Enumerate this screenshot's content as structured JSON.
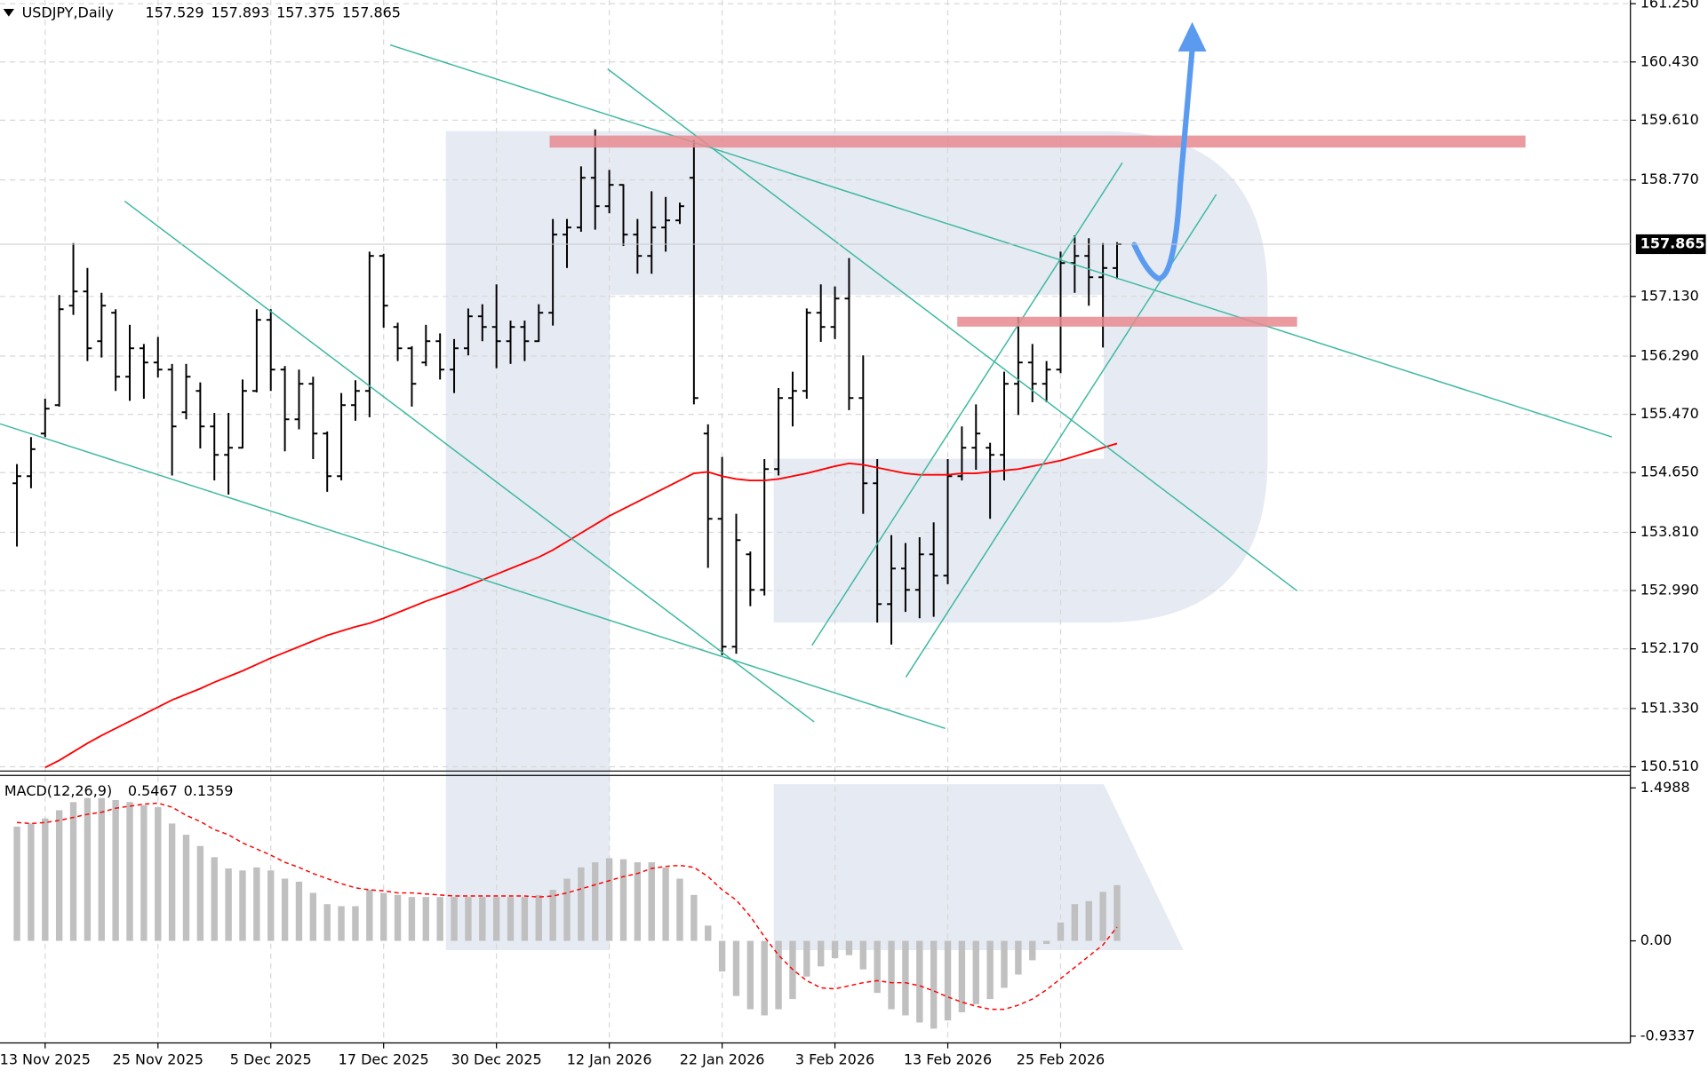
{
  "chart_data": [
    {
      "type": "ohlc",
      "title": "USDJPY,Daily",
      "color": "#000000",
      "bars": [
        [
          154.5,
          154.77,
          153.61,
          154.6
        ],
        [
          154.6,
          155.15,
          154.43,
          154.98
        ],
        [
          155.2,
          155.69,
          155.15,
          155.55
        ],
        [
          155.6,
          157.15,
          155.58,
          156.95
        ],
        [
          157.0,
          157.88,
          156.87,
          157.2
        ],
        [
          157.2,
          157.53,
          156.22,
          156.4
        ],
        [
          156.5,
          157.18,
          156.27,
          157.0
        ],
        [
          156.9,
          156.95,
          155.8,
          156.0
        ],
        [
          156.0,
          156.73,
          155.66,
          156.4
        ],
        [
          156.4,
          156.46,
          155.69,
          156.2
        ],
        [
          156.2,
          156.56,
          155.99,
          156.1
        ],
        [
          156.1,
          156.18,
          154.61,
          155.3
        ],
        [
          155.5,
          156.18,
          155.4,
          156.0
        ],
        [
          155.8,
          155.92,
          154.99,
          155.3
        ],
        [
          155.3,
          155.49,
          154.54,
          154.9
        ],
        [
          154.9,
          155.49,
          154.34,
          155.0
        ],
        [
          155.0,
          155.96,
          154.99,
          155.8
        ],
        [
          155.8,
          156.95,
          155.78,
          156.8
        ],
        [
          156.8,
          156.95,
          155.8,
          156.1
        ],
        [
          156.1,
          156.15,
          154.95,
          155.4
        ],
        [
          155.4,
          156.1,
          155.26,
          155.9
        ],
        [
          155.9,
          156.0,
          154.84,
          155.2
        ],
        [
          155.2,
          155.23,
          154.38,
          154.6
        ],
        [
          154.6,
          155.77,
          154.54,
          155.6
        ],
        [
          155.6,
          155.95,
          155.38,
          155.8
        ],
        [
          155.8,
          157.76,
          155.43,
          157.7
        ],
        [
          157.7,
          157.73,
          156.69,
          157.0
        ],
        [
          156.7,
          156.76,
          156.22,
          156.4
        ],
        [
          156.4,
          156.43,
          155.58,
          155.9
        ],
        [
          156.2,
          156.73,
          156.15,
          156.5
        ],
        [
          156.5,
          156.61,
          155.96,
          156.1
        ],
        [
          156.1,
          156.53,
          155.77,
          156.4
        ],
        [
          156.4,
          156.96,
          156.3,
          156.85
        ],
        [
          156.85,
          157.02,
          156.5,
          156.7
        ],
        [
          156.7,
          157.3,
          156.12,
          156.5
        ],
        [
          156.5,
          156.79,
          156.18,
          156.7
        ],
        [
          156.7,
          156.79,
          156.22,
          156.5
        ],
        [
          156.5,
          157.02,
          156.49,
          156.9
        ],
        [
          156.9,
          158.22,
          156.72,
          158.0
        ],
        [
          158.0,
          158.22,
          157.53,
          158.1
        ],
        [
          158.1,
          158.96,
          158.04,
          158.8
        ],
        [
          158.8,
          159.48,
          158.07,
          158.4
        ],
        [
          158.4,
          158.91,
          158.3,
          158.7
        ],
        [
          158.7,
          158.71,
          157.84,
          158.0
        ],
        [
          158.0,
          158.22,
          157.45,
          157.7
        ],
        [
          157.7,
          158.61,
          157.45,
          158.1
        ],
        [
          158.1,
          158.53,
          157.76,
          158.2
        ],
        [
          158.2,
          158.45,
          158.15,
          158.4
        ],
        [
          158.8,
          159.33,
          155.61,
          155.7
        ],
        [
          155.2,
          155.33,
          153.31,
          154.0
        ],
        [
          154.0,
          154.87,
          152.08,
          152.2
        ],
        [
          152.2,
          154.07,
          152.1,
          153.7
        ],
        [
          153.5,
          153.54,
          152.77,
          153.0
        ],
        [
          153.0,
          154.84,
          152.92,
          154.7
        ],
        [
          154.7,
          155.84,
          154.61,
          155.7
        ],
        [
          155.7,
          156.07,
          155.3,
          155.8
        ],
        [
          155.8,
          156.96,
          155.69,
          156.9
        ],
        [
          156.9,
          157.3,
          156.49,
          156.7
        ],
        [
          156.7,
          157.27,
          156.53,
          157.1
        ],
        [
          157.1,
          157.67,
          155.53,
          155.7
        ],
        [
          155.7,
          156.3,
          154.07,
          154.5
        ],
        [
          154.5,
          154.84,
          152.54,
          152.8
        ],
        [
          152.8,
          153.77,
          152.23,
          153.3
        ],
        [
          153.3,
          153.66,
          152.69,
          153.0
        ],
        [
          153.0,
          153.74,
          152.6,
          153.5
        ],
        [
          153.5,
          153.95,
          152.62,
          153.2
        ],
        [
          153.2,
          154.84,
          153.08,
          154.6
        ],
        [
          154.6,
          155.3,
          154.54,
          155.0
        ],
        [
          155.0,
          155.61,
          154.69,
          155.2
        ],
        [
          155.0,
          155.07,
          154.0,
          154.9
        ],
        [
          154.9,
          156.07,
          154.54,
          155.9
        ],
        [
          155.9,
          156.84,
          155.46,
          156.2
        ],
        [
          156.2,
          156.46,
          155.64,
          155.9
        ],
        [
          155.9,
          156.22,
          155.64,
          156.1
        ],
        [
          156.1,
          157.76,
          156.05,
          157.6
        ],
        [
          157.6,
          157.99,
          157.18,
          157.7
        ],
        [
          157.7,
          157.95,
          157.0,
          157.4
        ],
        [
          157.4,
          157.88,
          156.41,
          157.53
        ],
        [
          157.529,
          157.893,
          157.375,
          157.865
        ]
      ],
      "ma": [
        null,
        null,
        150.5,
        150.6,
        150.72,
        150.84,
        150.95,
        151.05,
        151.15,
        151.25,
        151.35,
        151.45,
        151.53,
        151.61,
        151.7,
        151.78,
        151.86,
        151.95,
        152.04,
        152.12,
        152.2,
        152.28,
        152.36,
        152.42,
        152.48,
        152.53,
        152.6,
        152.68,
        152.76,
        152.84,
        152.91,
        152.98,
        153.06,
        153.14,
        153.22,
        153.3,
        153.38,
        153.46,
        153.56,
        153.68,
        153.8,
        153.92,
        154.04,
        154.14,
        154.24,
        154.34,
        154.44,
        154.54,
        154.64,
        154.66,
        154.6,
        154.56,
        154.54,
        154.54,
        154.56,
        154.6,
        154.64,
        154.69,
        154.74,
        154.78,
        154.76,
        154.72,
        154.68,
        154.64,
        154.62,
        154.62,
        154.62,
        154.64,
        154.64,
        154.66,
        154.68,
        154.7,
        154.74,
        154.78,
        154.82,
        154.88,
        154.94,
        155.0,
        155.06
      ],
      "ma_color": "#ff0000",
      "xlim": [
        -1.2,
        114.4
      ],
      "ylim": [
        150.45,
        161.3
      ],
      "yticks": [
        {
          "value": 150.51,
          "label": "150.510"
        },
        {
          "value": 151.33,
          "label": "151.330"
        },
        {
          "value": 152.17,
          "label": "152.170"
        },
        {
          "value": 152.99,
          "label": "152.990"
        },
        {
          "value": 153.81,
          "label": "153.810"
        },
        {
          "value": 154.65,
          "label": "154.650"
        },
        {
          "value": 155.47,
          "label": "155.470"
        },
        {
          "value": 156.29,
          "label": "156.290"
        },
        {
          "value": 157.13,
          "label": "157.130"
        },
        {
          "value": 158.77,
          "label": "158.770"
        },
        {
          "value": 159.61,
          "label": "159.610"
        },
        {
          "value": 160.43,
          "label": "160.430"
        },
        {
          "value": 161.25,
          "label": "161.250"
        }
      ],
      "xticks": [
        {
          "value": 2,
          "label": "13 Nov 2025"
        },
        {
          "value": 10,
          "label": "25 Nov 2025"
        },
        {
          "value": 18,
          "label": "5 Dec 2025"
        },
        {
          "value": 26,
          "label": "17 Dec 2025"
        },
        {
          "value": 34,
          "label": "30 Dec 2025"
        },
        {
          "value": 42,
          "label": "12 Jan 2026"
        },
        {
          "value": 50,
          "label": "22 Jan 2026"
        },
        {
          "value": 58,
          "label": "3 Feb 2026"
        },
        {
          "value": 66,
          "label": "13 Feb 2026"
        },
        {
          "value": 74,
          "label": "25 Feb 2026"
        }
      ],
      "grid": true
    },
    {
      "type": "macd",
      "title": "MACD(12,26,9)",
      "color": "#c0c0c0",
      "values": [
        1.12,
        1.15,
        1.2,
        1.28,
        1.36,
        1.4,
        1.4,
        1.38,
        1.36,
        1.33,
        1.31,
        1.15,
        1.04,
        0.93,
        0.82,
        0.71,
        0.69,
        0.72,
        0.69,
        0.61,
        0.58,
        0.47,
        0.36,
        0.34,
        0.34,
        0.5,
        0.47,
        0.45,
        0.43,
        0.43,
        0.43,
        0.43,
        0.43,
        0.43,
        0.43,
        0.43,
        0.43,
        0.45,
        0.5,
        0.61,
        0.72,
        0.77,
        0.81,
        0.8,
        0.77,
        0.77,
        0.72,
        0.61,
        0.45,
        0.15,
        -0.3,
        -0.54,
        -0.67,
        -0.73,
        -0.67,
        -0.57,
        -0.35,
        -0.25,
        -0.17,
        -0.14,
        -0.28,
        -0.51,
        -0.67,
        -0.73,
        -0.8,
        -0.86,
        -0.78,
        -0.7,
        -0.62,
        -0.57,
        -0.46,
        -0.33,
        -0.19,
        -0.03,
        0.18,
        0.36,
        0.39,
        0.48,
        0.5467
      ],
      "signal": [
        1.16,
        1.15,
        1.16,
        1.18,
        1.21,
        1.24,
        1.26,
        1.3,
        1.32,
        1.34,
        1.35,
        1.31,
        1.23,
        1.17,
        1.09,
        1.04,
        0.96,
        0.9,
        0.84,
        0.77,
        0.72,
        0.66,
        0.61,
        0.56,
        0.52,
        0.5,
        0.49,
        0.47,
        0.47,
        0.46,
        0.45,
        0.44,
        0.44,
        0.44,
        0.44,
        0.44,
        0.44,
        0.43,
        0.44,
        0.47,
        0.51,
        0.55,
        0.59,
        0.63,
        0.66,
        0.71,
        0.73,
        0.74,
        0.72,
        0.63,
        0.5,
        0.4,
        0.24,
        0.04,
        -0.14,
        -0.28,
        -0.39,
        -0.46,
        -0.47,
        -0.44,
        -0.41,
        -0.39,
        -0.41,
        -0.41,
        -0.44,
        -0.49,
        -0.55,
        -0.6,
        -0.64,
        -0.67,
        -0.67,
        -0.63,
        -0.57,
        -0.48,
        -0.37,
        -0.26,
        -0.15,
        -0.04,
        0.1359
      ],
      "signal_color": "#ff0000",
      "ylim": [
        -1.0,
        1.6
      ],
      "yticks": [
        -0.9337,
        {
          "value": 0,
          "label": "0.00"
        },
        1.4988
      ],
      "grid": false
    }
  ]
}
